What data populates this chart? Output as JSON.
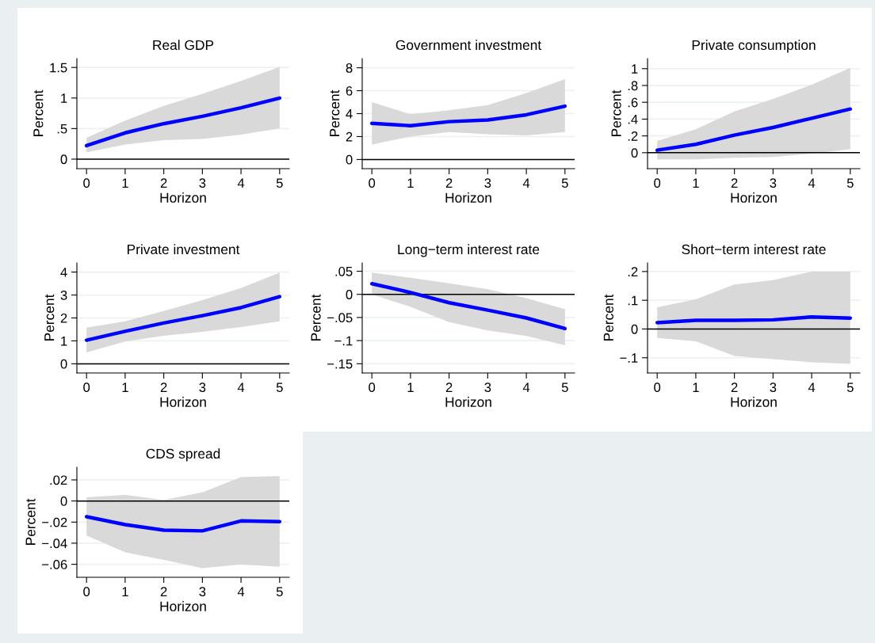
{
  "chart_data": [
    {
      "type": "line",
      "title": "Real GDP",
      "xlabel": "Horizon",
      "ylabel": "Percent",
      "x": [
        0,
        1,
        2,
        3,
        4,
        5
      ],
      "xlim": [
        -0.25,
        5.25
      ],
      "xticks": [
        0,
        1,
        2,
        3,
        4,
        5
      ],
      "ylim": [
        -0.156,
        1.645
      ],
      "yticks": [
        0,
        {
          "value": 0.5,
          "label": ".5"
        },
        1,
        1.5
      ],
      "grid": "y",
      "series": [
        {
          "color": "#0000ff",
          "values": [
            0.22,
            0.43,
            0.58,
            0.7,
            0.84,
            1.0
          ],
          "lower": [
            0.11,
            0.24,
            0.31,
            0.33,
            0.4,
            0.5
          ],
          "upper": [
            0.35,
            0.63,
            0.87,
            1.07,
            1.28,
            1.51
          ]
        }
      ],
      "ref_lines": [
        {
          "axis": "y",
          "value": 0,
          "color": "#000000"
        }
      ]
    },
    {
      "type": "line",
      "title": "Government investment",
      "xlabel": "Horizon",
      "ylabel": "Percent",
      "x": [
        0,
        1,
        2,
        3,
        4,
        5
      ],
      "xlim": [
        -0.25,
        5.25
      ],
      "xticks": [
        0,
        1,
        2,
        3,
        4,
        5
      ],
      "ylim": [
        -0.8,
        8.8
      ],
      "yticks": [
        0,
        2,
        4,
        6,
        8
      ],
      "grid": "y",
      "series": [
        {
          "color": "#0000ff",
          "values": [
            3.15,
            2.95,
            3.3,
            3.45,
            3.9,
            4.65
          ],
          "lower": [
            1.3,
            2.0,
            2.4,
            2.2,
            2.1,
            2.4
          ],
          "upper": [
            5.0,
            3.95,
            4.3,
            4.75,
            5.8,
            7.0
          ]
        }
      ],
      "ref_lines": [
        {
          "axis": "y",
          "value": 0,
          "color": "#000000"
        }
      ]
    },
    {
      "type": "line",
      "title": "Private consumption",
      "xlabel": "Horizon",
      "ylabel": "Percent",
      "x": [
        0,
        1,
        2,
        3,
        4,
        5
      ],
      "xlim": [
        -0.25,
        5.25
      ],
      "xticks": [
        0,
        1,
        2,
        3,
        4,
        5
      ],
      "ylim": [
        -0.19,
        1.12
      ],
      "yticks": [
        0,
        {
          "value": 0.2,
          "label": ".2"
        },
        {
          "value": 0.4,
          "label": ".4"
        },
        {
          "value": 0.6,
          "label": ".6"
        },
        {
          "value": 0.8,
          "label": ".8"
        },
        1
      ],
      "grid": "y",
      "series": [
        {
          "color": "#0000ff",
          "values": [
            0.03,
            0.1,
            0.21,
            0.3,
            0.41,
            0.52
          ],
          "lower": [
            -0.08,
            -0.08,
            -0.06,
            -0.05,
            -0.01,
            0.04
          ],
          "upper": [
            0.14,
            0.28,
            0.49,
            0.64,
            0.81,
            1.01
          ]
        }
      ],
      "ref_lines": [
        {
          "axis": "y",
          "value": 0,
          "color": "#000000"
        }
      ]
    },
    {
      "type": "line",
      "title": "Private investment",
      "xlabel": "Horizon",
      "ylabel": "Percent",
      "x": [
        0,
        1,
        2,
        3,
        4,
        5
      ],
      "xlim": [
        -0.25,
        5.25
      ],
      "xticks": [
        0,
        1,
        2,
        3,
        4,
        5
      ],
      "ylim": [
        -0.4,
        4.4
      ],
      "yticks": [
        0,
        1,
        2,
        3,
        4
      ],
      "grid": "y",
      "series": [
        {
          "color": "#0000ff",
          "values": [
            1.03,
            1.42,
            1.78,
            2.1,
            2.45,
            2.93
          ],
          "lower": [
            0.5,
            0.97,
            1.22,
            1.4,
            1.6,
            1.85
          ],
          "upper": [
            1.58,
            1.85,
            2.3,
            2.78,
            3.3,
            3.98
          ]
        }
      ],
      "ref_lines": [
        {
          "axis": "y",
          "value": 0,
          "color": "#000000"
        }
      ]
    },
    {
      "type": "line",
      "title": "Long−term interest rate",
      "xlabel": "Horizon",
      "ylabel": "Percent",
      "x": [
        0,
        1,
        2,
        3,
        4,
        5
      ],
      "xlim": [
        -0.25,
        5.25
      ],
      "xticks": [
        0,
        1,
        2,
        3,
        4,
        5
      ],
      "ylim": [
        -0.17,
        0.068
      ],
      "yticks": [
        {
          "value": -0.15,
          "label": "−.15"
        },
        {
          "value": -0.1,
          "label": "−.1"
        },
        {
          "value": -0.05,
          "label": "−.05"
        },
        0,
        {
          "value": 0.05,
          "label": ".05"
        }
      ],
      "grid": "y",
      "series": [
        {
          "color": "#0000ff",
          "values": [
            0.023,
            0.004,
            -0.018,
            -0.034,
            -0.051,
            -0.074
          ],
          "lower": [
            0.0,
            -0.027,
            -0.06,
            -0.078,
            -0.09,
            -0.11
          ],
          "upper": [
            0.047,
            0.036,
            0.024,
            0.011,
            -0.008,
            -0.032
          ]
        }
      ],
      "ref_lines": [
        {
          "axis": "y",
          "value": 0,
          "color": "#000000"
        }
      ]
    },
    {
      "type": "line",
      "title": "Short−term interest rate",
      "xlabel": "Horizon",
      "ylabel": "Percent",
      "x": [
        0,
        1,
        2,
        3,
        4,
        5
      ],
      "xlim": [
        -0.25,
        5.25
      ],
      "xticks": [
        0,
        1,
        2,
        3,
        4,
        5
      ],
      "ylim": [
        -0.153,
        0.23
      ],
      "yticks": [
        {
          "value": -0.1,
          "label": "−.1"
        },
        0,
        {
          "value": 0.1,
          "label": ".1"
        },
        {
          "value": 0.2,
          "label": ".2"
        }
      ],
      "grid": "y",
      "series": [
        {
          "color": "#0000ff",
          "values": [
            0.022,
            0.03,
            0.03,
            0.032,
            0.042,
            0.038
          ],
          "lower": [
            -0.031,
            -0.043,
            -0.094,
            -0.105,
            -0.116,
            -0.121
          ],
          "upper": [
            0.076,
            0.103,
            0.155,
            0.17,
            0.2,
            0.2
          ]
        }
      ],
      "ref_lines": [
        {
          "axis": "y",
          "value": 0,
          "color": "#000000"
        }
      ]
    },
    {
      "type": "line",
      "title": "CDS spread",
      "xlabel": "Horizon",
      "ylabel": "Percent",
      "x": [
        0,
        1,
        2,
        3,
        4,
        5
      ],
      "xlim": [
        -0.25,
        5.25
      ],
      "xticks": [
        0,
        1,
        2,
        3,
        4,
        5
      ],
      "ylim": [
        -0.0723,
        0.032
      ],
      "yticks": [
        {
          "value": -0.06,
          "label": "−.06"
        },
        {
          "value": -0.04,
          "label": "−.04"
        },
        {
          "value": -0.02,
          "label": "−.02"
        },
        0,
        {
          "value": 0.02,
          "label": ".02"
        }
      ],
      "grid": "y",
      "series": [
        {
          "color": "#0000ff",
          "values": [
            -0.0149,
            -0.0224,
            -0.0276,
            -0.0283,
            -0.0189,
            -0.0196
          ],
          "lower": [
            -0.0328,
            -0.0487,
            -0.0557,
            -0.0636,
            -0.0601,
            -0.0624
          ],
          "upper": [
            0.0035,
            0.0057,
            0.001,
            0.0082,
            0.0226,
            0.0236
          ]
        }
      ],
      "ref_lines": [
        {
          "axis": "y",
          "value": 0,
          "color": "#000000"
        }
      ]
    }
  ]
}
